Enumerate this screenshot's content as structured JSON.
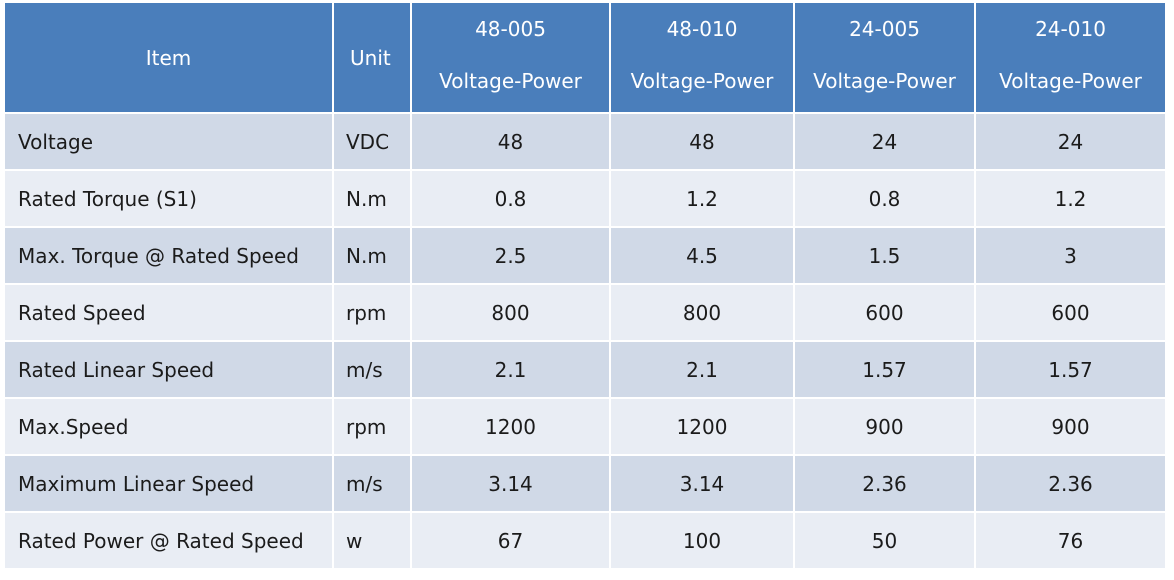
{
  "table": {
    "headers": {
      "item": "Item",
      "unit": "Unit",
      "models": [
        {
          "code": "48-005",
          "sub": "Voltage-Power"
        },
        {
          "code": "48-010",
          "sub": "Voltage-Power"
        },
        {
          "code": "24-005",
          "sub": "Voltage-Power"
        },
        {
          "code": "24-010",
          "sub": "Voltage-Power"
        }
      ]
    },
    "rows": [
      {
        "item": "Voltage",
        "unit": "VDC",
        "values": [
          "48",
          "48",
          "24",
          "24"
        ]
      },
      {
        "item": "Rated Torque (S1)",
        "unit": "N.m",
        "values": [
          "0.8",
          "1.2",
          "0.8",
          "1.2"
        ]
      },
      {
        "item": "Max. Torque @ Rated Speed",
        "unit": "N.m",
        "values": [
          "2.5",
          "4.5",
          "1.5",
          "3"
        ]
      },
      {
        "item": "Rated Speed",
        "unit": "rpm",
        "values": [
          "800",
          "800",
          "600",
          "600"
        ]
      },
      {
        "item": "Rated Linear Speed",
        "unit": "m/s",
        "values": [
          "2.1",
          "2.1",
          "1.57",
          "1.57"
        ]
      },
      {
        "item": "Max.Speed",
        "unit": "rpm",
        "values": [
          "1200",
          "1200",
          "900",
          "900"
        ]
      },
      {
        "item": "Maximum Linear Speed",
        "unit": "m/s",
        "values": [
          "3.14",
          "3.14",
          "2.36",
          "2.36"
        ]
      },
      {
        "item": "Rated Power @ Rated Speed",
        "unit": "w",
        "values": [
          "67",
          "100",
          "50",
          "76"
        ]
      }
    ]
  },
  "colors": {
    "header_bg": "#4a7ebb",
    "row_odd_bg": "#d0d9e7",
    "row_even_bg": "#e9edf4"
  }
}
